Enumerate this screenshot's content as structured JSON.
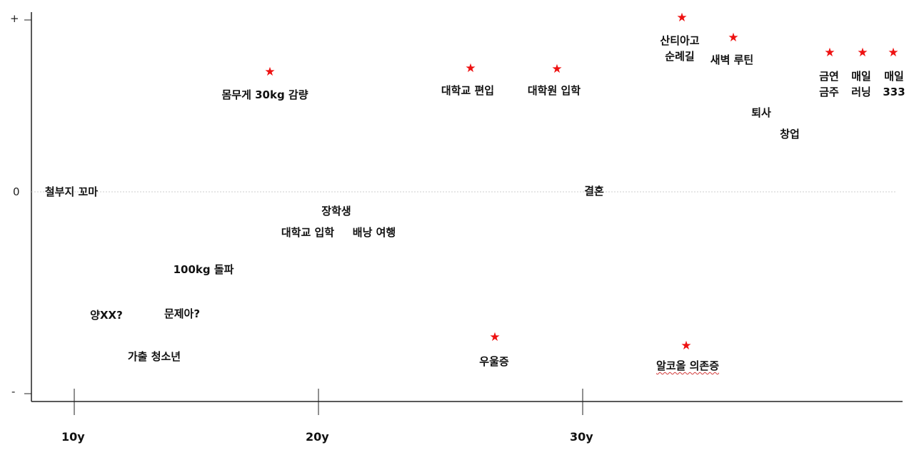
{
  "axes": {
    "y_ticks": {
      "top": "+",
      "zero": "0",
      "bottom": "-"
    },
    "x_ticks": [
      {
        "label": "10y",
        "age": 10
      },
      {
        "label": "20y",
        "age": 20
      },
      {
        "label": "30y",
        "age": 30
      }
    ]
  },
  "colors": {
    "star": "#ee1111",
    "axis": "#222222",
    "zero_line": "#cccccc",
    "label": "#111111",
    "spellcheck": "#d23a3a"
  },
  "events": [
    {
      "text": "철부지 꼬마"
    },
    {
      "text": "양XX?"
    },
    {
      "text": "가출 청소년"
    },
    {
      "text": "문제아?"
    },
    {
      "text": "100kg 돌파"
    },
    {
      "text": "몸무게 30kg 감량",
      "starred": true
    },
    {
      "text": "장학생"
    },
    {
      "text": "대학교 입학"
    },
    {
      "text": "배낭 여행"
    },
    {
      "text": "대학교 편입",
      "starred": true
    },
    {
      "text": "우울증",
      "starred": true
    },
    {
      "text": "대학원 입학",
      "starred": true
    },
    {
      "text": "결혼"
    },
    {
      "text": "산티아고\n순례길",
      "starred": true
    },
    {
      "text": "알코올 의존증",
      "starred": true,
      "spellcheck": true
    },
    {
      "text": "새벽 루틴",
      "starred": true
    },
    {
      "text": "퇴사"
    },
    {
      "text": "창업"
    },
    {
      "text": "금연\n금주",
      "starred": true
    },
    {
      "text": "매일\n러닝",
      "starred": true
    },
    {
      "text": "매일\n333",
      "starred": true
    }
  ]
}
